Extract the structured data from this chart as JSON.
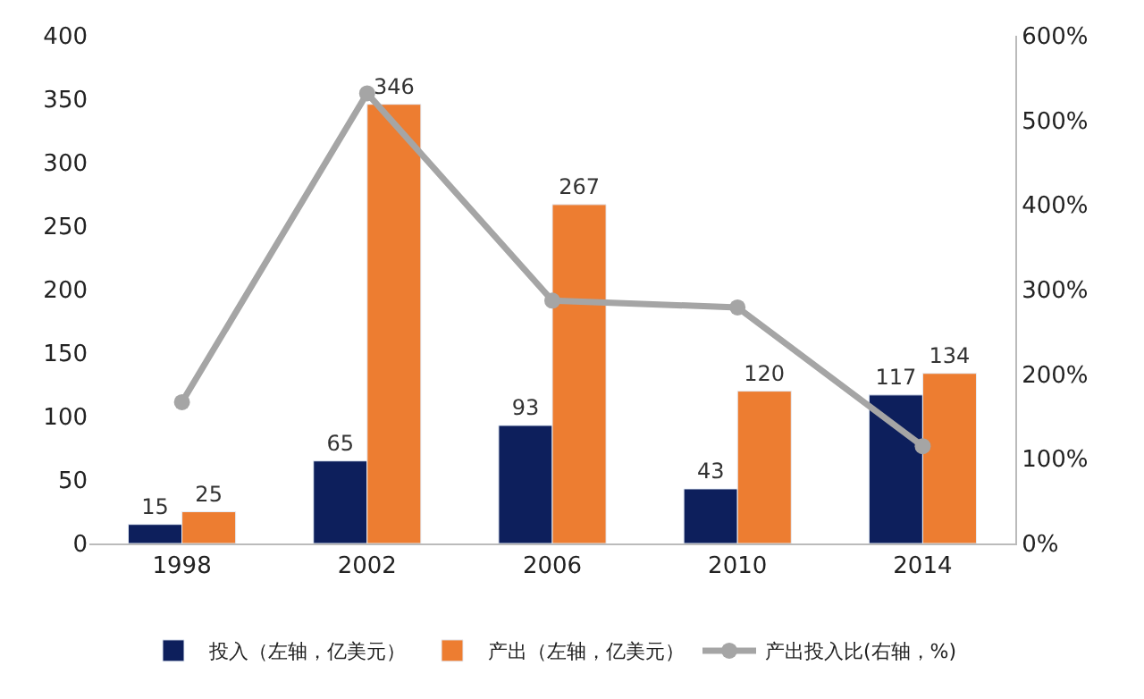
{
  "chart_data": {
    "type": "bar",
    "categories": [
      "1998",
      "2002",
      "2006",
      "2010",
      "2014"
    ],
    "series": [
      {
        "name": "投入（左轴，亿美元）",
        "color": "#0d1f5c",
        "values": [
          15,
          65,
          93,
          43,
          117
        ],
        "value_labels": [
          "15",
          "65",
          "93",
          "43",
          "117"
        ]
      },
      {
        "name": "产出（左轴，亿美元）",
        "color": "#ed7d31",
        "values": [
          25,
          346,
          267,
          120,
          134
        ],
        "value_labels": [
          "25",
          "346",
          "267",
          "120",
          "134"
        ]
      },
      {
        "name": "产出投入比(右轴，%)",
        "color": "#a5a5a5",
        "type": "line",
        "axis": "y2",
        "marker": "circle",
        "values": [
          167,
          532,
          287,
          279,
          115
        ]
      }
    ],
    "ylim": [
      0,
      400
    ],
    "yticks": [
      0,
      50,
      100,
      150,
      200,
      250,
      300,
      350,
      400
    ],
    "y2lim": [
      0,
      600
    ],
    "y2ticks": [
      {
        "value": 0,
        "label": "0%"
      },
      {
        "value": 100,
        "label": "100%"
      },
      {
        "value": 200,
        "label": "200%"
      },
      {
        "value": 300,
        "label": "300%"
      },
      {
        "value": 400,
        "label": "400%"
      },
      {
        "value": 500,
        "label": "500%"
      },
      {
        "value": 600,
        "label": "600%"
      }
    ],
    "legend": "bottom"
  }
}
